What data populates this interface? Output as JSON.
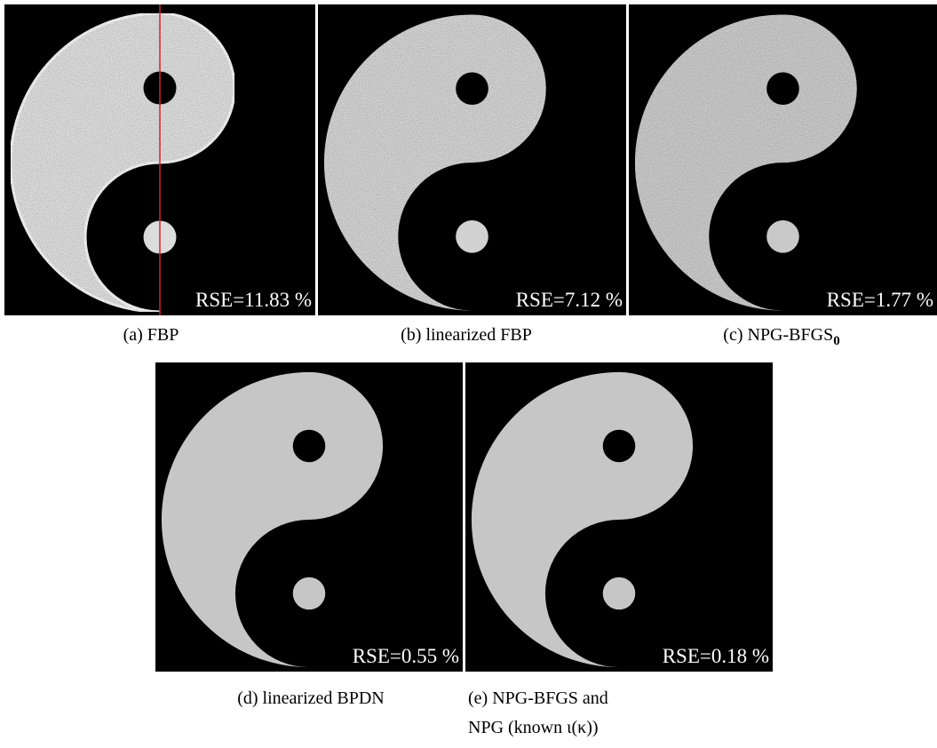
{
  "panels": [
    {
      "caption": "(a) FBP",
      "rse": "RSE=11.83 %"
    },
    {
      "caption": "(b) linearized FBP",
      "rse": "RSE=7.12 %"
    },
    {
      "caption": "(c) NPG-BFGS",
      "caption_sub": "0",
      "rse": "RSE=1.77 %"
    },
    {
      "caption": "(d) linearized BPDN",
      "rse": "RSE=0.55 %"
    },
    {
      "caption_lines": [
        "(e) NPG-BFGS and",
        "NPG (known ι(κ))"
      ],
      "rse": "RSE=0.18 %"
    }
  ]
}
